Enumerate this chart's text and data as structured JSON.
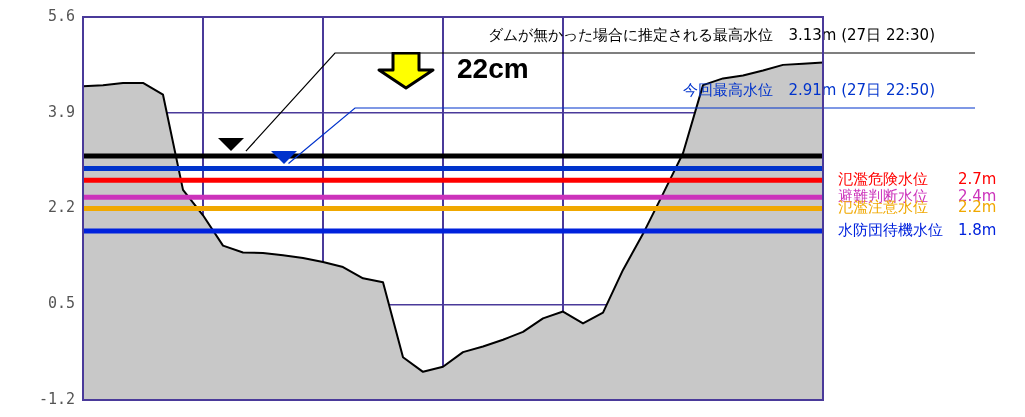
{
  "chart_data": {
    "type": "area",
    "color": "#c8c8c8",
    "categories": [
      null,
      null,
      null,
      null,
      null,
      null,
      null,
      null,
      null,
      null,
      null,
      null,
      null,
      null,
      null,
      null,
      null,
      null,
      null,
      null,
      null,
      null,
      null,
      null,
      null,
      null,
      null,
      null,
      null,
      null,
      null,
      null,
      null,
      null,
      null,
      null,
      null,
      null
    ],
    "values": [
      4.37,
      4.39,
      4.43,
      4.43,
      4.22,
      2.53,
      2.08,
      1.54,
      1.42,
      1.41,
      1.37,
      1.32,
      1.25,
      1.16,
      0.96,
      0.89,
      -0.44,
      -0.7,
      -0.61,
      -0.35,
      -0.25,
      -0.13,
      0.01,
      0.25,
      0.37,
      0.16,
      0.35,
      1.11,
      1.75,
      2.46,
      3.18,
      4.39,
      4.51,
      4.56,
      4.65,
      4.75,
      4.77,
      4.79
    ],
    "ylim": [
      -1.2,
      5.6
    ],
    "yticks": [
      5.6,
      3.9,
      2.2,
      0.5,
      -1.2
    ],
    "grid": true,
    "legend": false,
    "tick_labels": "y",
    "ref_lines": [
      {
        "axis": "y",
        "value": 3.13,
        "label": "ダムが無かった場合に推定される最高水位　3.13m (27日 22:30)",
        "color": "#000000"
      },
      {
        "axis": "y",
        "value": 2.91,
        "label": "今回最高水位　2.91m (27日 22:50)",
        "color": "#0033cc"
      },
      {
        "axis": "y",
        "value": 2.7,
        "label": "氾濫危険水位　　2.7m",
        "color": "#ff0000"
      },
      {
        "axis": "y",
        "value": 2.4,
        "label": "避難判断水位　　2.4m",
        "color": "#cc33bb"
      },
      {
        "axis": "y",
        "value": 2.2,
        "label": "氾濫注意水位　　2.2m",
        "color": "#f0a800"
      },
      {
        "axis": "y",
        "value": 1.8,
        "label": "水防団待機水位　1.8m",
        "color": "#0022dd"
      }
    ],
    "annotations": [
      "22cm"
    ]
  }
}
